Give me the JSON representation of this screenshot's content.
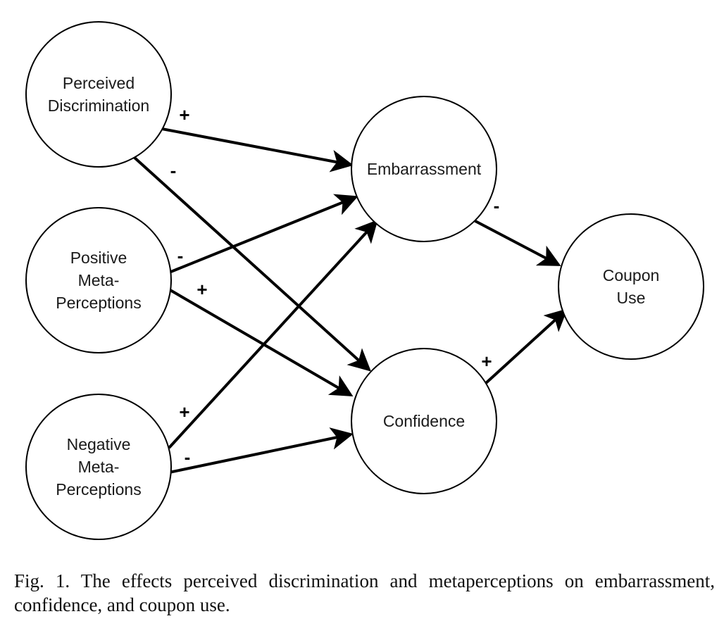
{
  "diagram": {
    "nodes": [
      {
        "id": "perceived_discrimination",
        "lines": [
          "Perceived",
          "Discrimination"
        ]
      },
      {
        "id": "positive_meta_perceptions",
        "lines": [
          "Positive",
          "Meta-",
          "Perceptions"
        ]
      },
      {
        "id": "negative_meta_perceptions",
        "lines": [
          "Negative",
          "Meta-",
          "Perceptions"
        ]
      },
      {
        "id": "embarrassment",
        "lines": [
          "Embarrassment"
        ]
      },
      {
        "id": "confidence",
        "lines": [
          "Confidence"
        ]
      },
      {
        "id": "coupon_use",
        "lines": [
          "Coupon",
          "Use"
        ]
      }
    ],
    "edges": [
      {
        "from": "perceived_discrimination",
        "to": "embarrassment",
        "sign": "+"
      },
      {
        "from": "perceived_discrimination",
        "to": "confidence",
        "sign": "-"
      },
      {
        "from": "positive_meta_perceptions",
        "to": "embarrassment",
        "sign": "-"
      },
      {
        "from": "positive_meta_perceptions",
        "to": "confidence",
        "sign": "+"
      },
      {
        "from": "negative_meta_perceptions",
        "to": "embarrassment",
        "sign": "+"
      },
      {
        "from": "negative_meta_perceptions",
        "to": "confidence",
        "sign": "-"
      },
      {
        "from": "embarrassment",
        "to": "coupon_use",
        "sign": "-"
      },
      {
        "from": "confidence",
        "to": "coupon_use",
        "sign": "+"
      }
    ]
  },
  "caption": "Fig. 1.  The effects perceived discrimination and metaperceptions on embarrassment, confidence, and coupon use."
}
